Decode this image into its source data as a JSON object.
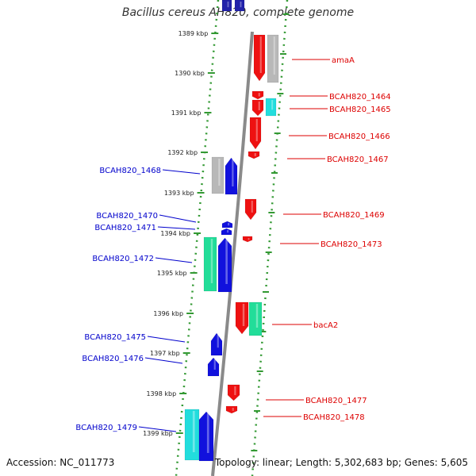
{
  "title": "Bacillus cereus AH820, complete genome",
  "footer": {
    "accession": "Accession: NC_011773",
    "summary": "Topology: linear; Length: 5,302,683 bp; Genes: 5,605"
  },
  "colors": {
    "forward_label": "#0000cc",
    "reverse_label": "#dd0000",
    "tick": "#339933",
    "backbone": "#8a8a8a"
  },
  "kbp_ticks": [
    "1389 kbp",
    "1390 kbp",
    "1391 kbp",
    "1392 kbp",
    "1393 kbp",
    "1394 kbp",
    "1395 kbp",
    "1396 kbp",
    "1397 kbp",
    "1398 kbp",
    "1399 kbp"
  ],
  "labels_forward": [
    "BCAH820_1468",
    "BCAH820_1470",
    "BCAH820_1471",
    "BCAH820_1472",
    "BCAH820_1475",
    "BCAH820_1476",
    "BCAH820_1479"
  ],
  "labels_reverse": [
    "amaA",
    "BCAH820_1464",
    "BCAH820_1465",
    "BCAH820_1466",
    "BCAH820_1467",
    "BCAH820_1469",
    "BCAH820_1473",
    "bacA2",
    "BCAH820_1477",
    "BCAH820_1478"
  ]
}
